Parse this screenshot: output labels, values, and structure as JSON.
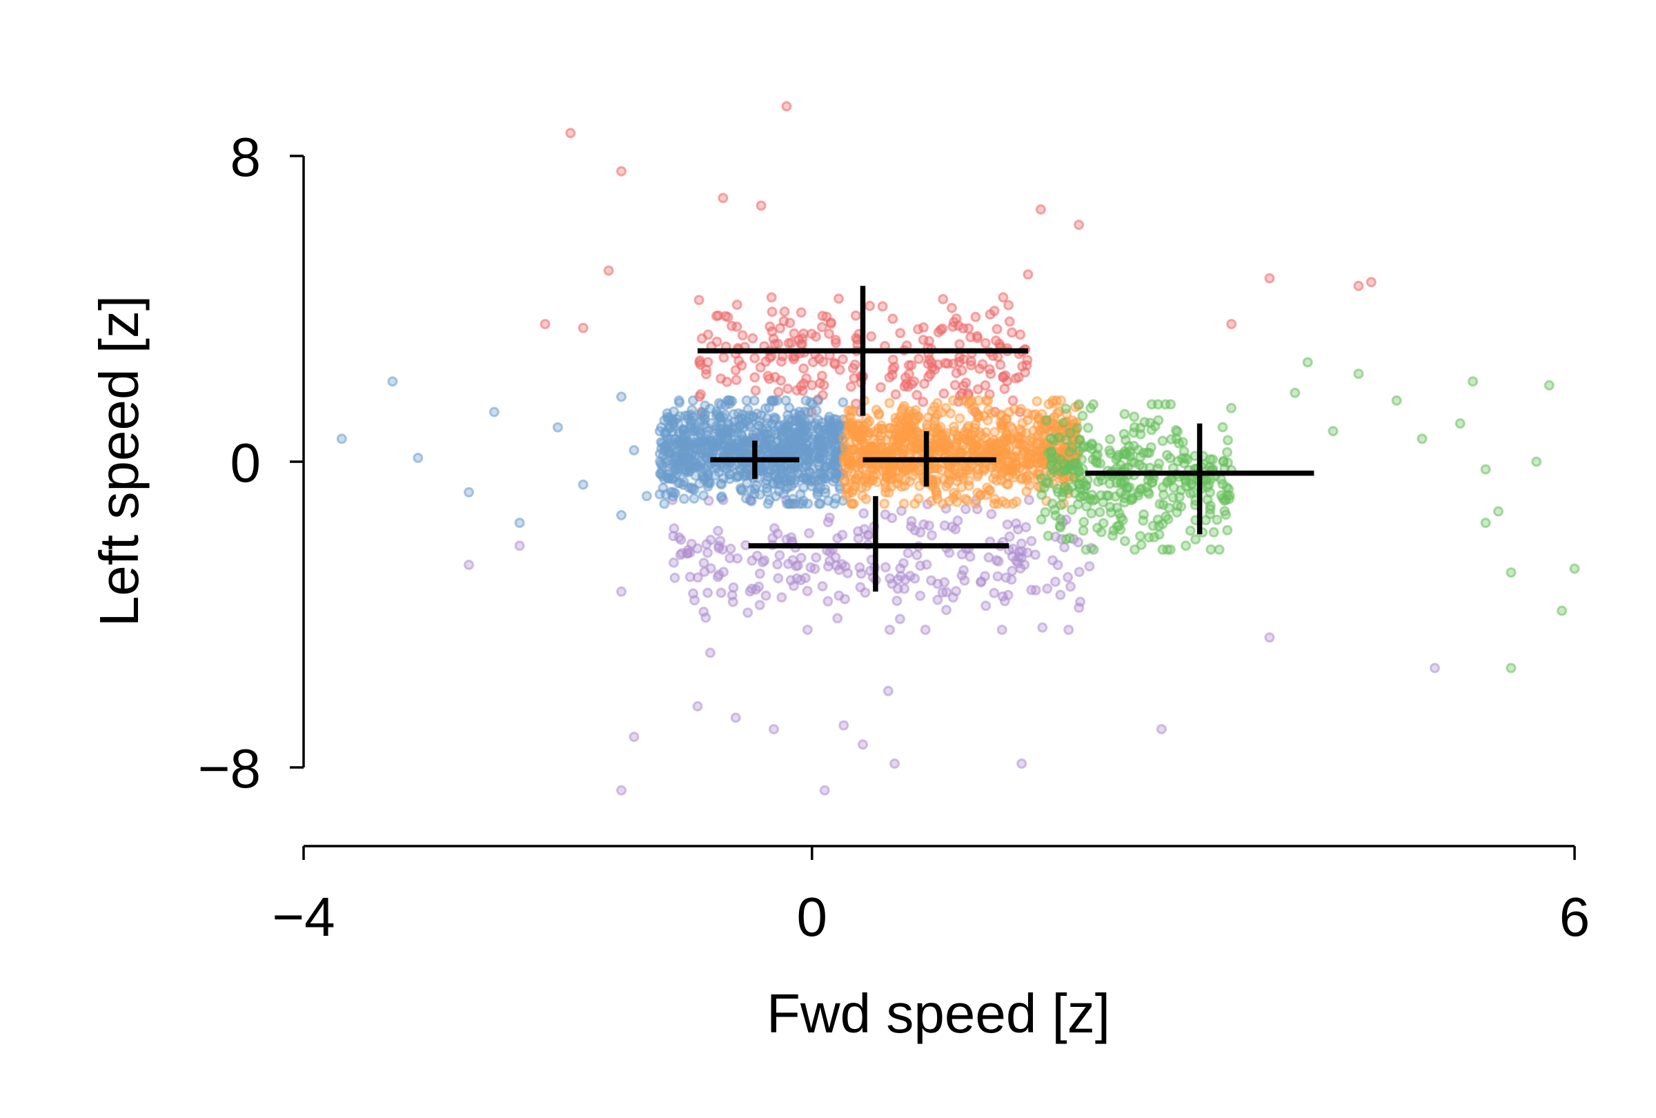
{
  "chart_data": {
    "type": "scatter",
    "title": "",
    "xlabel": "Fwd speed [z]",
    "ylabel": "Left speed [z]",
    "xlim": [
      -4,
      6
    ],
    "ylim": [
      -8,
      8
    ],
    "xticks": [
      -4,
      0,
      6
    ],
    "xtick_labels": [
      "−4",
      "0",
      "6"
    ],
    "yticks": [
      -8,
      0,
      8
    ],
    "ytick_labels": [
      "−8",
      "0",
      "8"
    ],
    "grid": false,
    "legend": "none",
    "series": [
      {
        "color": "#6b9ccc",
        "cluster": {
          "x_range": [
            -1.2,
            0.25
          ],
          "y_range": [
            -1.1,
            1.6
          ],
          "n": 900
        },
        "sample_points": [
          [
            -3.7,
            0.6
          ],
          [
            -3.3,
            2.1
          ],
          [
            -3.1,
            0.1
          ],
          [
            -2.7,
            -0.8
          ],
          [
            -2.5,
            1.3
          ],
          [
            -2.3,
            -1.6
          ],
          [
            -2.0,
            0.9
          ],
          [
            -1.8,
            -0.6
          ],
          [
            -1.5,
            1.7
          ],
          [
            -1.5,
            -1.4
          ],
          [
            -1.4,
            0.3
          ],
          [
            -1.3,
            -0.9
          ]
        ],
        "mean": [
          -0.45,
          0.05
        ],
        "err_x": [
          -0.8,
          -0.1
        ],
        "err_y": [
          -0.45,
          0.55
        ]
      },
      {
        "color": "#ff9d45",
        "cluster": {
          "x_range": [
            0.25,
            2.1
          ],
          "y_range": [
            -1.1,
            1.6
          ],
          "n": 900
        },
        "sample_points": [],
        "mean": [
          0.9,
          0.05
        ],
        "err_x": [
          0.4,
          1.45
        ],
        "err_y": [
          -0.65,
          0.8
        ]
      },
      {
        "color": "#67bf5c",
        "cluster": {
          "x_range": [
            1.8,
            3.3
          ],
          "y_range": [
            -2.3,
            1.5
          ],
          "n": 350
        },
        "sample_points": [
          [
            3.8,
            1.8
          ],
          [
            3.9,
            2.6
          ],
          [
            4.1,
            0.8
          ],
          [
            4.3,
            2.3
          ],
          [
            4.6,
            1.6
          ],
          [
            4.8,
            0.6
          ],
          [
            5.1,
            1.0
          ],
          [
            5.3,
            -0.2
          ],
          [
            5.2,
            2.1
          ],
          [
            5.4,
            -1.3
          ],
          [
            5.5,
            -2.9
          ],
          [
            5.5,
            -5.4
          ],
          [
            5.7,
            0.0
          ],
          [
            5.9,
            -3.9
          ],
          [
            5.8,
            2.0
          ],
          [
            6.0,
            -2.8
          ],
          [
            5.3,
            -1.6
          ]
        ],
        "mean": [
          3.05,
          -0.3
        ],
        "err_x": [
          2.15,
          3.95
        ],
        "err_y": [
          -1.9,
          1.0
        ]
      },
      {
        "color": "#ed6a6a",
        "cluster": {
          "x_range": [
            -0.9,
            1.7
          ],
          "y_range": [
            1.3,
            4.3
          ],
          "n": 250
        },
        "sample_points": [
          [
            -1.9,
            8.6
          ],
          [
            -1.5,
            7.6
          ],
          [
            -0.7,
            6.9
          ],
          [
            -0.4,
            6.7
          ],
          [
            -0.2,
            9.3
          ],
          [
            1.8,
            6.6
          ],
          [
            2.1,
            6.2
          ],
          [
            1.7,
            4.9
          ],
          [
            -1.6,
            5.0
          ],
          [
            3.6,
            4.8
          ],
          [
            4.3,
            4.6
          ],
          [
            4.4,
            4.7
          ],
          [
            -2.1,
            3.6
          ],
          [
            3.3,
            3.6
          ],
          [
            -1.8,
            3.5
          ]
        ],
        "mean": [
          0.4,
          2.9
        ],
        "err_x": [
          -0.9,
          1.7
        ],
        "err_y": [
          1.2,
          4.6
        ]
      },
      {
        "color": "#b08fd0",
        "cluster": {
          "x_range": [
            -1.1,
            2.2
          ],
          "y_range": [
            -4.4,
            -1.0
          ],
          "n": 250
        },
        "sample_points": [
          [
            -2.7,
            -2.7
          ],
          [
            -2.3,
            -2.2
          ],
          [
            -1.5,
            -8.6
          ],
          [
            -1.4,
            -7.2
          ],
          [
            -0.9,
            -6.4
          ],
          [
            -0.6,
            -6.7
          ],
          [
            -0.3,
            -7.0
          ],
          [
            0.1,
            -8.6
          ],
          [
            0.25,
            -6.9
          ],
          [
            0.4,
            -7.4
          ],
          [
            0.6,
            -6.0
          ],
          [
            0.65,
            -7.9
          ],
          [
            1.65,
            -7.9
          ],
          [
            2.75,
            -7.0
          ],
          [
            3.6,
            -4.6
          ],
          [
            4.9,
            -5.4
          ],
          [
            -1.5,
            -3.4
          ],
          [
            -0.8,
            -5.0
          ]
        ],
        "mean": [
          0.5,
          -2.2
        ],
        "err_x": [
          -0.5,
          1.55
        ],
        "err_y": [
          -3.4,
          -0.9
        ]
      }
    ]
  }
}
